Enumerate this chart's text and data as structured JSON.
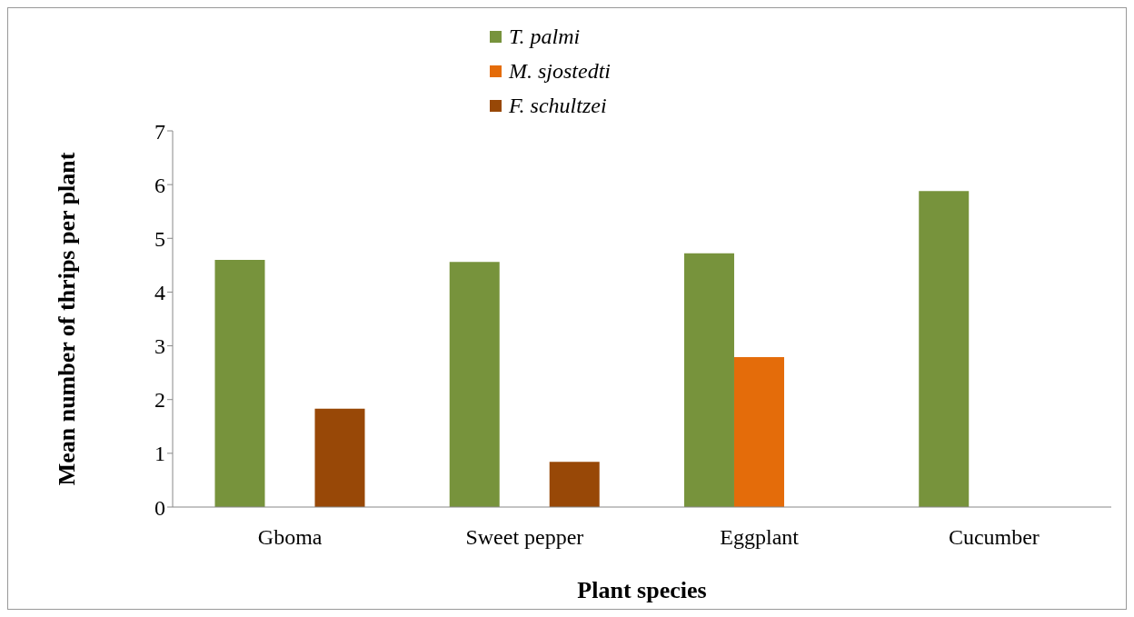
{
  "chart_data": {
    "type": "bar",
    "xlabel": "Plant species",
    "ylabel": "Mean number of thrips per plant",
    "categories": [
      "Gboma",
      "Sweet pepper",
      "Eggplant",
      "Cucumber"
    ],
    "series": [
      {
        "name": "T. palmi",
        "color": "#77933c",
        "values": [
          4.6,
          4.56,
          4.72,
          5.88
        ]
      },
      {
        "name": "M. sjostedti",
        "color": "#e46c0a",
        "values": [
          null,
          null,
          2.79,
          null
        ]
      },
      {
        "name": "F. schultzei",
        "color": "#984807",
        "values": [
          1.83,
          0.84,
          null,
          null
        ]
      }
    ],
    "ylim": [
      0,
      7
    ],
    "yticks": [
      0,
      1,
      2,
      3,
      4,
      5,
      6,
      7
    ],
    "grid": false,
    "legend": "top"
  }
}
